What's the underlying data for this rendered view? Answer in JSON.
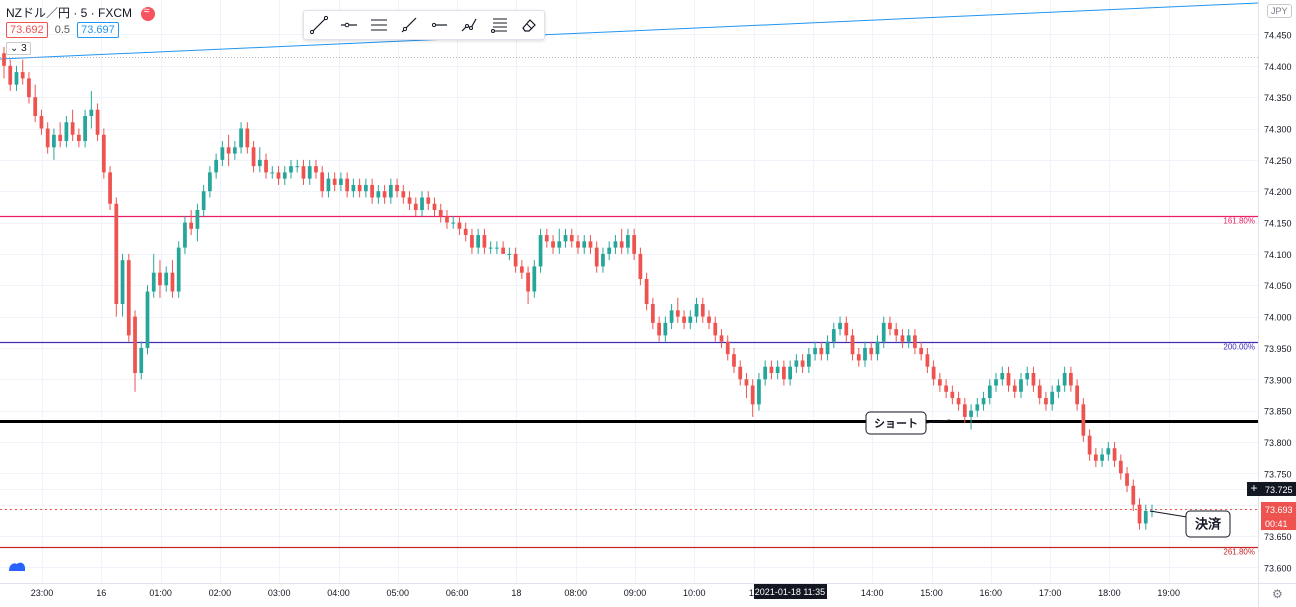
{
  "header": {
    "symbol": "NZドル／円 · 5 · FXCM",
    "bid": "73.692",
    "spread": "0.5",
    "ask": "73.697",
    "indicator_count": "3",
    "logo_icon": "fxcm-logo-icon",
    "currency_badge": "JPY"
  },
  "toolbar": {
    "tools": [
      "trend-line-icon",
      "horizontal-ray-icon",
      "parallel-channel-icon",
      "ray-icon",
      "horizontal-line-icon",
      "path-icon",
      "fib-retracement-icon",
      "eraser-icon"
    ]
  },
  "chart_data": {
    "type": "candlestick",
    "y_axis": {
      "ticks": [
        "74.450",
        "74.400",
        "74.350",
        "74.300",
        "74.250",
        "74.200",
        "74.150",
        "74.100",
        "74.050",
        "74.000",
        "73.950",
        "73.900",
        "73.850",
        "73.800",
        "73.750",
        "73.725",
        "73.700",
        "73.650",
        "73.600"
      ],
      "min": 73.575,
      "max": 74.505
    },
    "x_axis": {
      "ticks": [
        "23:00",
        "16",
        "01:00",
        "02:00",
        "03:00",
        "04:00",
        "05:00",
        "06:00",
        "18",
        "08:00",
        "09:00",
        "10:00",
        "11",
        "13:00",
        "14:00",
        "15:00",
        "16:00",
        "17:00",
        "18:00",
        "19:00"
      ],
      "crosshair_label": "2021-01-18   11:35"
    },
    "levels": [
      {
        "label": "161.80%",
        "value": 74.161,
        "color": "#e91e63"
      },
      {
        "label": "200.00%",
        "value": 73.96,
        "color": "#3f2fb3"
      },
      {
        "label": "261.80%",
        "value": 73.633,
        "color": "#c62828"
      },
      {
        "label": "",
        "value": 73.833,
        "color": "#000000"
      }
    ],
    "annotations": [
      {
        "text": "ショート"
      },
      {
        "text": "決済"
      }
    ],
    "price_labels": [
      {
        "text": "73.725",
        "value": 73.725,
        "color": "#131722"
      },
      {
        "text": "73.693",
        "value": 73.693,
        "color": "#ef5350"
      },
      {
        "text": "00:41",
        "color": "#ef5350"
      }
    ],
    "candles": [
      [
        74.42,
        74.43,
        74.38,
        74.4
      ],
      [
        74.4,
        74.41,
        74.36,
        74.37
      ],
      [
        74.37,
        74.4,
        74.36,
        74.39
      ],
      [
        74.39,
        74.41,
        74.37,
        74.38
      ],
      [
        74.38,
        74.39,
        74.34,
        74.35
      ],
      [
        74.35,
        74.37,
        74.31,
        74.32
      ],
      [
        74.32,
        74.33,
        74.29,
        74.3
      ],
      [
        74.3,
        74.31,
        74.26,
        74.27
      ],
      [
        74.27,
        74.3,
        74.25,
        74.29
      ],
      [
        74.29,
        74.31,
        74.27,
        74.28
      ],
      [
        74.28,
        74.32,
        74.27,
        74.31
      ],
      [
        74.31,
        74.33,
        74.28,
        74.29
      ],
      [
        74.29,
        74.3,
        74.27,
        74.28
      ],
      [
        74.28,
        74.33,
        74.27,
        74.32
      ],
      [
        74.32,
        74.36,
        74.3,
        74.33
      ],
      [
        74.33,
        74.34,
        74.28,
        74.29
      ],
      [
        74.29,
        74.3,
        74.22,
        74.23
      ],
      [
        74.23,
        74.24,
        74.17,
        74.18
      ],
      [
        74.18,
        74.19,
        74.0,
        74.02
      ],
      [
        74.02,
        74.1,
        74.0,
        74.09
      ],
      [
        74.09,
        74.1,
        73.96,
        73.97
      ],
      [
        74.0,
        74.01,
        73.88,
        73.91
      ],
      [
        73.91,
        73.96,
        73.9,
        73.95
      ],
      [
        73.95,
        74.05,
        73.94,
        74.04
      ],
      [
        74.04,
        74.1,
        74.03,
        74.07
      ],
      [
        74.07,
        74.09,
        74.03,
        74.05
      ],
      [
        74.05,
        74.08,
        74.04,
        74.07
      ],
      [
        74.07,
        74.09,
        74.03,
        74.04
      ],
      [
        74.04,
        74.12,
        74.03,
        74.11
      ],
      [
        74.11,
        74.16,
        74.1,
        74.15
      ],
      [
        74.15,
        74.17,
        74.13,
        74.14
      ],
      [
        74.14,
        74.18,
        74.12,
        74.17
      ],
      [
        74.17,
        74.21,
        74.16,
        74.2
      ],
      [
        74.2,
        74.24,
        74.19,
        74.23
      ],
      [
        74.23,
        74.26,
        74.22,
        74.25
      ],
      [
        74.25,
        74.28,
        74.24,
        74.27
      ],
      [
        74.27,
        74.29,
        74.24,
        74.26
      ],
      [
        74.26,
        74.28,
        74.25,
        74.27
      ],
      [
        74.27,
        74.31,
        74.26,
        74.3
      ],
      [
        74.3,
        74.31,
        74.26,
        74.27
      ],
      [
        74.27,
        74.28,
        74.23,
        74.24
      ],
      [
        74.24,
        74.27,
        74.23,
        74.25
      ],
      [
        74.25,
        74.26,
        74.22,
        74.23
      ],
      [
        74.23,
        74.24,
        74.22,
        74.23
      ],
      [
        74.23,
        74.24,
        74.21,
        74.22
      ],
      [
        74.22,
        74.24,
        74.21,
        74.23
      ],
      [
        74.23,
        74.25,
        74.22,
        74.24
      ],
      [
        74.24,
        74.25,
        74.23,
        74.24
      ],
      [
        74.24,
        74.25,
        74.21,
        74.22
      ],
      [
        74.22,
        74.25,
        74.21,
        74.24
      ],
      [
        74.24,
        74.25,
        74.22,
        74.23
      ],
      [
        74.23,
        74.24,
        74.19,
        74.2
      ],
      [
        74.2,
        74.23,
        74.19,
        74.22
      ],
      [
        74.22,
        74.23,
        74.2,
        74.21
      ],
      [
        74.21,
        74.23,
        74.2,
        74.22
      ],
      [
        74.22,
        74.23,
        74.19,
        74.2
      ],
      [
        74.2,
        74.22,
        74.19,
        74.21
      ],
      [
        74.21,
        74.22,
        74.19,
        74.2
      ],
      [
        74.2,
        74.22,
        74.19,
        74.21
      ],
      [
        74.21,
        74.22,
        74.18,
        74.19
      ],
      [
        74.19,
        74.21,
        74.18,
        74.2
      ],
      [
        74.2,
        74.21,
        74.18,
        74.19
      ],
      [
        74.19,
        74.22,
        74.18,
        74.21
      ],
      [
        74.21,
        74.22,
        74.19,
        74.2
      ],
      [
        74.2,
        74.21,
        74.18,
        74.19
      ],
      [
        74.19,
        74.2,
        74.17,
        74.18
      ],
      [
        74.18,
        74.19,
        74.16,
        74.17
      ],
      [
        74.17,
        74.2,
        74.16,
        74.19
      ],
      [
        74.19,
        74.2,
        74.17,
        74.18
      ],
      [
        74.18,
        74.19,
        74.16,
        74.17
      ],
      [
        74.17,
        74.18,
        74.15,
        74.16
      ],
      [
        74.16,
        74.17,
        74.14,
        74.15
      ],
      [
        74.15,
        74.16,
        74.14,
        74.15
      ],
      [
        74.15,
        74.16,
        74.13,
        74.14
      ],
      [
        74.14,
        74.15,
        74.12,
        74.13
      ],
      [
        74.13,
        74.14,
        74.1,
        74.11
      ],
      [
        74.11,
        74.14,
        74.1,
        74.13
      ],
      [
        74.13,
        74.14,
        74.1,
        74.11
      ],
      [
        74.11,
        74.12,
        74.1,
        74.11
      ],
      [
        74.11,
        74.12,
        74.1,
        74.11
      ],
      [
        74.11,
        74.12,
        74.1,
        74.1
      ],
      [
        74.1,
        74.11,
        74.09,
        74.1
      ],
      [
        74.1,
        74.11,
        74.07,
        74.08
      ],
      [
        74.08,
        74.09,
        74.06,
        74.07
      ],
      [
        74.07,
        74.08,
        74.02,
        74.04
      ],
      [
        74.04,
        74.09,
        74.03,
        74.08
      ],
      [
        74.08,
        74.14,
        74.07,
        74.13
      ],
      [
        74.13,
        74.14,
        74.11,
        74.12
      ],
      [
        74.12,
        74.13,
        74.1,
        74.11
      ],
      [
        74.11,
        74.14,
        74.1,
        74.12
      ],
      [
        74.12,
        74.14,
        74.11,
        74.13
      ],
      [
        74.13,
        74.14,
        74.11,
        74.12
      ],
      [
        74.12,
        74.13,
        74.1,
        74.11
      ],
      [
        74.11,
        74.13,
        74.1,
        74.12
      ],
      [
        74.12,
        74.13,
        74.1,
        74.11
      ],
      [
        74.11,
        74.12,
        74.07,
        74.08
      ],
      [
        74.08,
        74.11,
        74.07,
        74.1
      ],
      [
        74.1,
        74.12,
        74.09,
        74.11
      ],
      [
        74.11,
        74.13,
        74.1,
        74.12
      ],
      [
        74.12,
        74.14,
        74.1,
        74.11
      ],
      [
        74.11,
        74.14,
        74.1,
        74.13
      ],
      [
        74.13,
        74.14,
        74.09,
        74.1
      ],
      [
        74.1,
        74.11,
        74.05,
        74.06
      ],
      [
        74.06,
        74.07,
        74.01,
        74.02
      ],
      [
        74.02,
        74.03,
        73.98,
        73.99
      ],
      [
        73.99,
        74.0,
        73.96,
        73.97
      ],
      [
        73.97,
        74.0,
        73.96,
        73.99
      ],
      [
        73.99,
        74.02,
        73.98,
        74.01
      ],
      [
        74.01,
        74.03,
        73.99,
        74.0
      ],
      [
        74.0,
        74.01,
        73.98,
        73.99
      ],
      [
        73.99,
        74.01,
        73.98,
        74.0
      ],
      [
        74.0,
        74.03,
        73.99,
        74.02
      ],
      [
        74.02,
        74.03,
        73.99,
        74.0
      ],
      [
        74.0,
        74.01,
        73.98,
        73.99
      ],
      [
        73.99,
        74.0,
        73.96,
        73.97
      ],
      [
        73.97,
        73.98,
        73.95,
        73.96
      ],
      [
        73.96,
        73.97,
        73.93,
        73.94
      ],
      [
        73.94,
        73.95,
        73.91,
        73.92
      ],
      [
        73.92,
        73.93,
        73.89,
        73.9
      ],
      [
        73.9,
        73.91,
        73.87,
        73.89
      ],
      [
        73.89,
        73.9,
        73.84,
        73.86
      ],
      [
        73.86,
        73.91,
        73.85,
        73.9
      ],
      [
        73.9,
        73.93,
        73.89,
        73.92
      ],
      [
        73.92,
        73.93,
        73.9,
        73.91
      ],
      [
        73.91,
        73.93,
        73.9,
        73.92
      ],
      [
        73.92,
        73.93,
        73.89,
        73.9
      ],
      [
        73.9,
        73.93,
        73.89,
        73.92
      ],
      [
        73.92,
        73.94,
        73.91,
        73.93
      ],
      [
        73.93,
        73.94,
        73.91,
        73.92
      ],
      [
        73.92,
        73.95,
        73.91,
        73.94
      ],
      [
        73.94,
        73.96,
        73.93,
        73.95
      ],
      [
        73.95,
        73.96,
        73.93,
        73.94
      ],
      [
        73.94,
        73.97,
        73.93,
        73.96
      ],
      [
        73.96,
        73.99,
        73.95,
        73.98
      ],
      [
        73.98,
        74.0,
        73.97,
        73.99
      ],
      [
        73.99,
        74.0,
        73.96,
        73.97
      ],
      [
        73.97,
        73.98,
        73.93,
        73.94
      ],
      [
        73.94,
        73.95,
        73.92,
        73.93
      ],
      [
        73.93,
        73.96,
        73.92,
        73.95
      ],
      [
        73.95,
        73.96,
        73.93,
        73.94
      ],
      [
        73.94,
        73.97,
        73.93,
        73.96
      ],
      [
        73.96,
        74.0,
        73.95,
        73.99
      ],
      [
        73.99,
        74.0,
        73.97,
        73.98
      ],
      [
        73.98,
        73.99,
        73.96,
        73.97
      ],
      [
        73.97,
        73.98,
        73.95,
        73.96
      ],
      [
        73.96,
        73.98,
        73.95,
        73.97
      ],
      [
        73.97,
        73.98,
        73.94,
        73.95
      ],
      [
        73.95,
        73.96,
        73.93,
        73.94
      ],
      [
        73.94,
        73.95,
        73.91,
        73.92
      ],
      [
        73.92,
        73.93,
        73.89,
        73.9
      ],
      [
        73.9,
        73.91,
        73.88,
        73.89
      ],
      [
        73.89,
        73.9,
        73.87,
        73.88
      ],
      [
        73.88,
        73.89,
        73.86,
        73.87
      ],
      [
        73.87,
        73.88,
        73.85,
        73.86
      ],
      [
        73.86,
        73.87,
        73.83,
        73.84
      ],
      [
        73.84,
        73.86,
        73.82,
        73.85
      ],
      [
        73.85,
        73.87,
        73.84,
        73.86
      ],
      [
        73.86,
        73.88,
        73.85,
        73.87
      ],
      [
        73.87,
        73.9,
        73.86,
        73.89
      ],
      [
        73.89,
        73.91,
        73.88,
        73.9
      ],
      [
        73.9,
        73.92,
        73.89,
        73.91
      ],
      [
        73.91,
        73.92,
        73.88,
        73.89
      ],
      [
        73.89,
        73.9,
        73.87,
        73.88
      ],
      [
        73.88,
        73.91,
        73.87,
        73.9
      ],
      [
        73.9,
        73.92,
        73.89,
        73.91
      ],
      [
        73.91,
        73.92,
        73.88,
        73.89
      ],
      [
        73.89,
        73.9,
        73.86,
        73.87
      ],
      [
        73.87,
        73.88,
        73.85,
        73.86
      ],
      [
        73.86,
        73.89,
        73.85,
        73.88
      ],
      [
        73.88,
        73.9,
        73.87,
        73.89
      ],
      [
        73.89,
        73.92,
        73.88,
        73.91
      ],
      [
        73.91,
        73.92,
        73.88,
        73.89
      ],
      [
        73.89,
        73.9,
        73.85,
        73.86
      ],
      [
        73.86,
        73.87,
        73.8,
        73.81
      ],
      [
        73.81,
        73.82,
        73.77,
        73.78
      ],
      [
        73.78,
        73.79,
        73.76,
        73.77
      ],
      [
        73.77,
        73.79,
        73.76,
        73.78
      ],
      [
        73.78,
        73.8,
        73.77,
        73.79
      ],
      [
        73.79,
        73.8,
        73.76,
        73.77
      ],
      [
        73.77,
        73.78,
        73.74,
        73.75
      ],
      [
        73.75,
        73.76,
        73.72,
        73.73
      ],
      [
        73.73,
        73.74,
        73.69,
        73.7
      ],
      [
        73.7,
        73.71,
        73.66,
        73.67
      ],
      [
        73.67,
        73.7,
        73.66,
        73.69
      ],
      [
        73.69,
        73.7,
        73.68,
        73.69
      ]
    ]
  }
}
